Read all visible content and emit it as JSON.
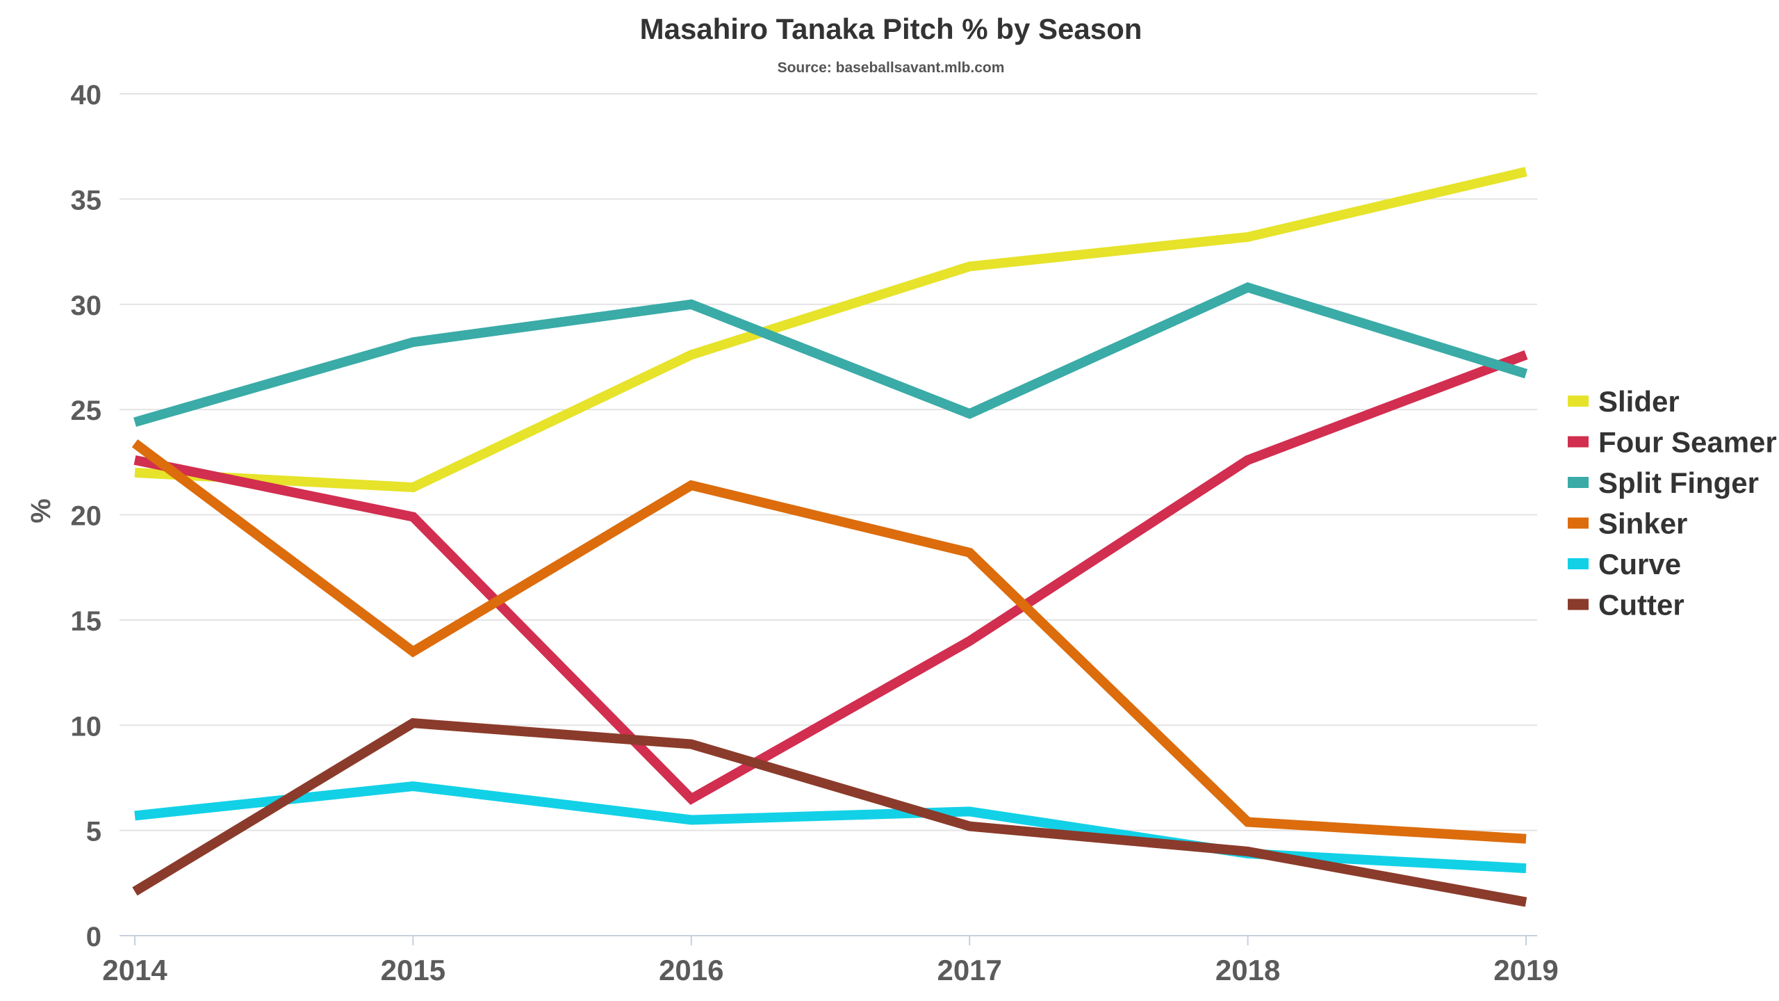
{
  "chart_data": {
    "type": "line",
    "title": "Masahiro Tanaka Pitch % by Season",
    "subtitle": "Source: baseballsavant.mlb.com",
    "xlabel": "",
    "ylabel": "%",
    "x": [
      "2014",
      "2015",
      "2016",
      "2017",
      "2018",
      "2019"
    ],
    "ylim": [
      0,
      40
    ],
    "yticks": [
      0,
      5,
      10,
      15,
      20,
      25,
      30,
      35,
      40
    ],
    "grid": true,
    "legend_position": "right",
    "series": [
      {
        "name": "Slider",
        "color": "#e6e32a",
        "values": [
          22.0,
          21.3,
          27.6,
          31.8,
          33.2,
          36.3
        ]
      },
      {
        "name": "Four Seamer",
        "color": "#d22e4f",
        "values": [
          22.6,
          19.9,
          6.5,
          14.0,
          22.6,
          27.6
        ]
      },
      {
        "name": "Split Finger",
        "color": "#3aaba7",
        "values": [
          24.4,
          28.2,
          30.0,
          24.8,
          30.8,
          26.7
        ]
      },
      {
        "name": "Sinker",
        "color": "#dc6c0c",
        "values": [
          23.4,
          13.5,
          21.4,
          18.2,
          5.4,
          4.6
        ]
      },
      {
        "name": "Curve",
        "color": "#12d1e7",
        "values": [
          5.7,
          7.1,
          5.5,
          5.9,
          3.9,
          3.2
        ]
      },
      {
        "name": "Cutter",
        "color": "#8b3b2b",
        "values": [
          2.1,
          10.1,
          9.1,
          5.2,
          4.0,
          1.6
        ]
      }
    ]
  }
}
